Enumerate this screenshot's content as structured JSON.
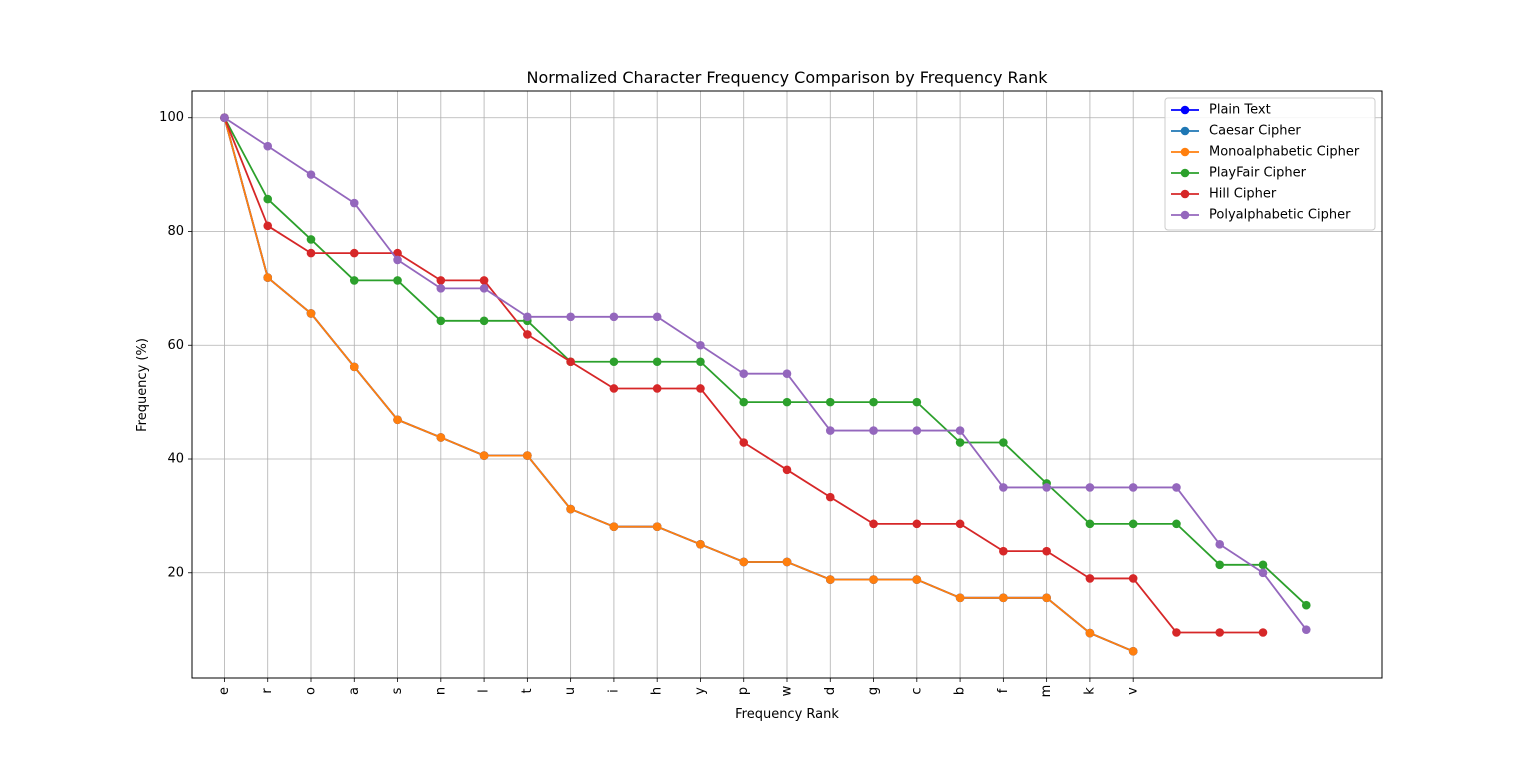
{
  "chart_data": {
    "type": "line",
    "title": "Normalized Character Frequency Comparison by Frequency Rank",
    "xlabel": "Frequency Rank",
    "ylabel": "Frequency (%)",
    "categories": [
      "e",
      "r",
      "o",
      "a",
      "s",
      "n",
      "l",
      "t",
      "u",
      "i",
      "h",
      "y",
      "p",
      "w",
      "d",
      "g",
      "c",
      "b",
      "f",
      "m",
      "k",
      "v"
    ],
    "x_range": [
      -0.75,
      26.75
    ],
    "ylim": [
      1.5,
      104.7
    ],
    "yticks": [
      20,
      40,
      60,
      80,
      100
    ],
    "grid": true,
    "legend_position": "top-right",
    "series": [
      {
        "name": "Plain Text",
        "color": "#0000ff",
        "x": [
          0,
          1,
          2,
          3,
          4,
          5,
          6,
          7,
          8,
          9,
          10,
          11,
          12,
          13,
          14,
          15,
          16,
          17,
          18,
          19,
          20,
          21
        ],
        "values": [
          100,
          71.9,
          65.6,
          56.2,
          46.9,
          43.8,
          40.6,
          40.6,
          31.2,
          28.1,
          28.1,
          25.0,
          21.9,
          21.9,
          18.8,
          18.8,
          18.8,
          15.6,
          15.6,
          15.6,
          9.4,
          6.2
        ]
      },
      {
        "name": "Caesar Cipher",
        "color": "#1f77b4",
        "x": [
          0,
          1,
          2,
          3,
          4,
          5,
          6,
          7,
          8,
          9,
          10,
          11,
          12,
          13,
          14,
          15,
          16,
          17,
          18,
          19,
          20,
          21
        ],
        "values": [
          100,
          71.9,
          65.6,
          56.2,
          46.9,
          43.8,
          40.6,
          40.6,
          31.2,
          28.1,
          28.1,
          25.0,
          21.9,
          21.9,
          18.8,
          18.8,
          18.8,
          15.6,
          15.6,
          15.6,
          9.4,
          6.2
        ]
      },
      {
        "name": "Monoalphabetic Cipher",
        "color": "#ff7f0e",
        "x": [
          0,
          1,
          2,
          3,
          4,
          5,
          6,
          7,
          8,
          9,
          10,
          11,
          12,
          13,
          14,
          15,
          16,
          17,
          18,
          19,
          20,
          21
        ],
        "values": [
          100,
          71.9,
          65.6,
          56.2,
          46.9,
          43.8,
          40.6,
          40.6,
          31.2,
          28.1,
          28.1,
          25.0,
          21.9,
          21.9,
          18.8,
          18.8,
          18.8,
          15.6,
          15.6,
          15.6,
          9.4,
          6.2
        ]
      },
      {
        "name": "PlayFair Cipher",
        "color": "#2ca02c",
        "x": [
          0,
          1,
          2,
          3,
          4,
          5,
          6,
          7,
          8,
          9,
          10,
          11,
          12,
          13,
          14,
          15,
          16,
          17,
          18,
          19,
          20,
          21,
          22,
          23,
          24,
          25
        ],
        "values": [
          100,
          85.7,
          78.6,
          71.4,
          71.4,
          64.3,
          64.3,
          64.3,
          57.1,
          57.1,
          57.1,
          57.1,
          50.0,
          50.0,
          50.0,
          50.0,
          50.0,
          42.9,
          42.9,
          35.7,
          28.6,
          28.6,
          28.6,
          21.4,
          21.4,
          14.3
        ]
      },
      {
        "name": "Hill Cipher",
        "color": "#d62728",
        "x": [
          0,
          1,
          2,
          3,
          4,
          5,
          6,
          7,
          8,
          9,
          10,
          11,
          12,
          13,
          14,
          15,
          16,
          17,
          18,
          19,
          20,
          21,
          22,
          23,
          24
        ],
        "values": [
          100,
          81.0,
          76.2,
          76.2,
          76.2,
          71.4,
          71.4,
          61.9,
          57.1,
          52.4,
          52.4,
          52.4,
          42.9,
          38.1,
          33.3,
          28.6,
          28.6,
          28.6,
          23.8,
          23.8,
          19.0,
          19.0,
          9.5,
          9.5,
          9.5
        ]
      },
      {
        "name": "Polyalphabetic Cipher",
        "color": "#9467bd",
        "x": [
          0,
          1,
          2,
          3,
          4,
          5,
          6,
          7,
          8,
          9,
          10,
          11,
          12,
          13,
          14,
          15,
          16,
          17,
          18,
          19,
          20,
          21,
          22,
          23,
          24,
          25
        ],
        "values": [
          100,
          95,
          90,
          85,
          75,
          70,
          70,
          65,
          65,
          65,
          65,
          60,
          55,
          55,
          45,
          45,
          45,
          45,
          35,
          35,
          35,
          35,
          35,
          25,
          20,
          10
        ]
      }
    ]
  }
}
